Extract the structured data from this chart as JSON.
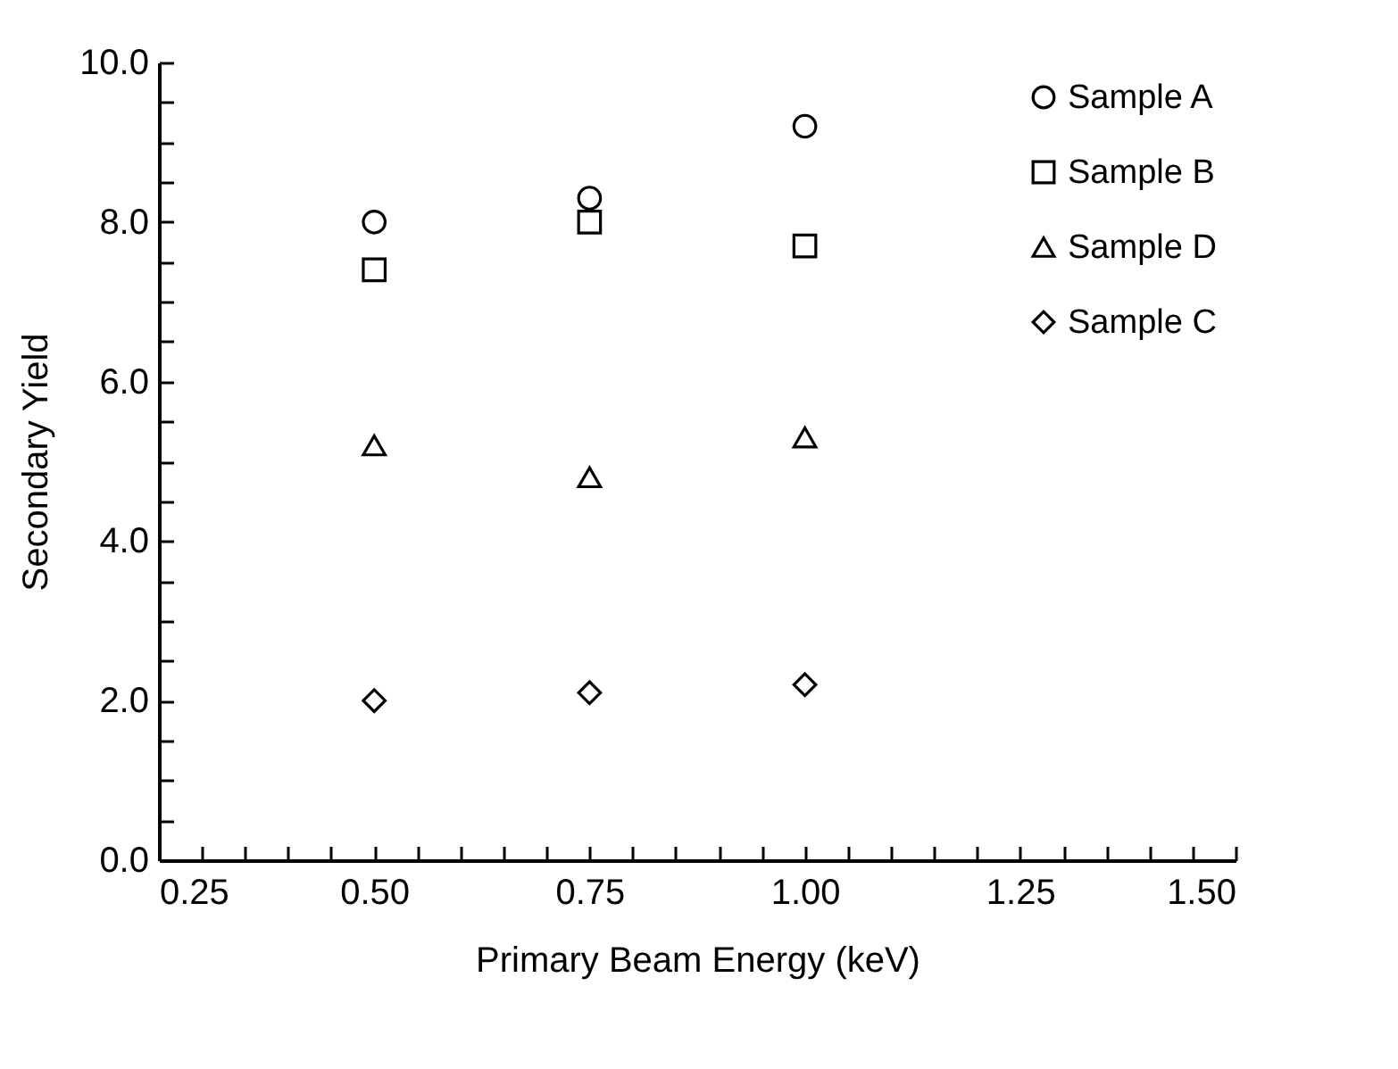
{
  "chart_data": {
    "type": "scatter",
    "xlabel": "Primary Beam Energy (keV)",
    "ylabel": "Secondary Yield",
    "x": [
      0.5,
      0.75,
      1.0
    ],
    "series": [
      {
        "name": "Sample A",
        "color": "#000000",
        "marker": "circle",
        "values": [
          8.0,
          8.3,
          9.2
        ]
      },
      {
        "name": "Sample B",
        "color": "#000000",
        "marker": "square",
        "values": [
          7.4,
          8.0,
          7.7
        ]
      },
      {
        "name": "Sample D",
        "color": "#000000",
        "marker": "triangle",
        "values": [
          5.2,
          4.8,
          5.3
        ]
      },
      {
        "name": "Sample C",
        "color": "#000000",
        "marker": "diamond",
        "values": [
          2.0,
          2.1,
          2.2
        ]
      }
    ],
    "xlim": [
      0.25,
      1.5
    ],
    "xticks": [
      {
        "value": 0.25,
        "label": "0.25"
      },
      {
        "value": 0.3,
        "label": null
      },
      {
        "value": 0.35,
        "label": null
      },
      {
        "value": 0.4,
        "label": null
      },
      {
        "value": 0.45,
        "label": null
      },
      {
        "value": 0.5,
        "label": "0.50"
      },
      {
        "value": 0.55,
        "label": null
      },
      {
        "value": 0.6,
        "label": null
      },
      {
        "value": 0.65,
        "label": null
      },
      {
        "value": 0.7,
        "label": null
      },
      {
        "value": 0.75,
        "label": "0.75"
      },
      {
        "value": 0.8,
        "label": null
      },
      {
        "value": 0.85,
        "label": null
      },
      {
        "value": 0.9,
        "label": null
      },
      {
        "value": 0.95,
        "label": null
      },
      {
        "value": 1.0,
        "label": "1.00"
      },
      {
        "value": 1.05,
        "label": null
      },
      {
        "value": 1.1,
        "label": null
      },
      {
        "value": 1.15,
        "label": null
      },
      {
        "value": 1.2,
        "label": null
      },
      {
        "value": 1.25,
        "label": "1.25"
      },
      {
        "value": 1.3,
        "label": null
      },
      {
        "value": 1.35,
        "label": null
      },
      {
        "value": 1.4,
        "label": null
      },
      {
        "value": 1.45,
        "label": null
      },
      {
        "value": 1.5,
        "label": "1.50"
      }
    ],
    "ylim": [
      0,
      10
    ],
    "yticks": [
      {
        "value": 0,
        "label": "0.0"
      },
      {
        "value": 0.5,
        "label": null
      },
      {
        "value": 1,
        "label": null
      },
      {
        "value": 1.5,
        "label": null
      },
      {
        "value": 2,
        "label": "2.0"
      },
      {
        "value": 2.5,
        "label": null
      },
      {
        "value": 3,
        "label": null
      },
      {
        "value": 3.5,
        "label": null
      },
      {
        "value": 4,
        "label": "4.0"
      },
      {
        "value": 4.5,
        "label": null
      },
      {
        "value": 5,
        "label": null
      },
      {
        "value": 5.5,
        "label": null
      },
      {
        "value": 6,
        "label": "6.0"
      },
      {
        "value": 6.5,
        "label": null
      },
      {
        "value": 7,
        "label": null
      },
      {
        "value": 7.5,
        "label": null
      },
      {
        "value": 8,
        "label": "8.0"
      },
      {
        "value": 8.5,
        "label": null
      },
      {
        "value": 9,
        "label": null
      },
      {
        "value": 9.5,
        "label": null
      },
      {
        "value": 10,
        "label": "10.0"
      }
    ],
    "grid": false,
    "legend": "top right"
  }
}
